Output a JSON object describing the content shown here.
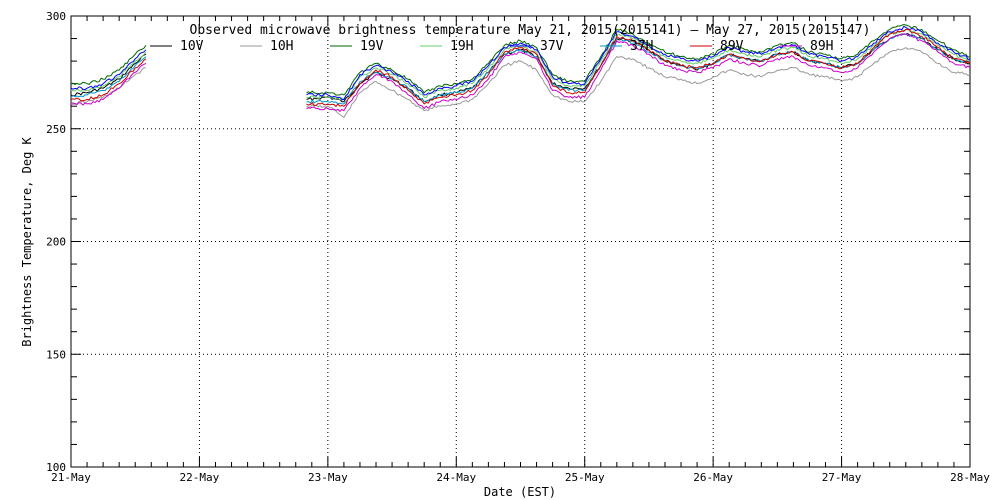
{
  "chart_data": {
    "type": "line",
    "title": "Observed microwave brightness temperature May 21, 2015(2015141) – May 27, 2015(2015147)",
    "xlabel": "Date (EST)",
    "ylabel": "Brightness Temperature, Deg K",
    "ylim": [
      100,
      300
    ],
    "xlim": [
      "2015-05-21",
      "2015-05-28"
    ],
    "yticks": [
      100,
      150,
      200,
      250,
      300
    ],
    "xtick_labels": [
      "21-May",
      "22-May",
      "23-May",
      "24-May",
      "25-May",
      "26-May",
      "27-May",
      "28-May"
    ],
    "grid": true,
    "legend_placement": "top",
    "legend_overlaps_title": true,
    "gaps": [
      [
        "2015-05-21T14:00",
        "2015-05-22T20:00"
      ]
    ],
    "x": [
      "2015-05-21T00:00",
      "2015-05-21T03:00",
      "2015-05-21T06:00",
      "2015-05-21T09:00",
      "2015-05-21T12:00",
      "2015-05-21T14:00",
      "2015-05-22T20:00",
      "2015-05-23T00:00",
      "2015-05-23T03:00",
      "2015-05-23T06:00",
      "2015-05-23T09:00",
      "2015-05-23T12:00",
      "2015-05-23T15:00",
      "2015-05-23T18:00",
      "2015-05-23T21:00",
      "2015-05-24T00:00",
      "2015-05-24T03:00",
      "2015-05-24T06:00",
      "2015-05-24T09:00",
      "2015-05-24T12:00",
      "2015-05-24T15:00",
      "2015-05-24T18:00",
      "2015-05-24T21:00",
      "2015-05-25T00:00",
      "2015-05-25T03:00",
      "2015-05-25T06:00",
      "2015-05-25T09:00",
      "2015-05-25T12:00",
      "2015-05-25T15:00",
      "2015-05-25T18:00",
      "2015-05-25T21:00",
      "2015-05-26T00:00",
      "2015-05-26T03:00",
      "2015-05-26T06:00",
      "2015-05-26T09:00",
      "2015-05-26T12:00",
      "2015-05-26T15:00",
      "2015-05-26T18:00",
      "2015-05-26T21:00",
      "2015-05-27T00:00",
      "2015-05-27T03:00",
      "2015-05-27T06:00",
      "2015-05-27T09:00",
      "2015-05-27T12:00",
      "2015-05-27T15:00",
      "2015-05-27T18:00",
      "2015-05-27T21:00",
      "2015-05-28T00:00"
    ],
    "series": [
      {
        "name": "10V",
        "color": "#000000",
        "values": [
          265,
          266,
          268,
          272,
          279,
          283,
          263,
          264,
          262,
          270,
          275,
          272,
          268,
          262,
          265,
          266,
          268,
          275,
          283,
          285,
          282,
          270,
          268,
          268,
          278,
          290,
          289,
          285,
          280,
          278,
          276,
          279,
          283,
          281,
          280,
          283,
          284,
          280,
          279,
          277,
          279,
          285,
          290,
          292,
          290,
          285,
          281,
          279
        ]
      },
      {
        "name": "10H",
        "color": "#999999",
        "values": [
          261,
          262,
          264,
          268,
          274,
          277,
          260,
          260,
          255,
          266,
          271,
          267,
          263,
          258,
          260,
          261,
          263,
          270,
          278,
          280,
          276,
          265,
          262,
          262,
          271,
          282,
          281,
          277,
          273,
          272,
          270,
          273,
          276,
          274,
          273,
          276,
          277,
          274,
          273,
          271,
          273,
          279,
          284,
          286,
          284,
          279,
          275,
          274
        ]
      },
      {
        "name": "19V",
        "color": "#006600",
        "values": [
          270,
          270,
          272,
          276,
          283,
          287,
          266,
          266,
          265,
          275,
          279,
          276,
          272,
          266,
          269,
          270,
          272,
          279,
          287,
          289,
          286,
          274,
          271,
          271,
          282,
          294,
          292,
          288,
          284,
          282,
          281,
          283,
          287,
          285,
          284,
          287,
          288,
          284,
          283,
          281,
          283,
          289,
          294,
          296,
          294,
          289,
          285,
          282
        ]
      },
      {
        "name": "19H",
        "color": "#66cc66",
        "values": [
          267,
          267,
          269,
          273,
          280,
          284,
          264,
          264,
          263,
          273,
          277,
          274,
          270,
          264,
          267,
          268,
          270,
          277,
          285,
          287,
          284,
          272,
          269,
          269,
          280,
          292,
          290,
          286,
          282,
          280,
          279,
          281,
          285,
          283,
          282,
          285,
          286,
          282,
          281,
          279,
          281,
          287,
          292,
          294,
          292,
          287,
          283,
          280
        ]
      },
      {
        "name": "37V",
        "color": "#0000ff",
        "values": [
          268,
          268,
          270,
          274,
          281,
          285,
          265,
          265,
          263,
          274,
          278,
          275,
          271,
          265,
          268,
          269,
          271,
          278,
          286,
          288,
          285,
          273,
          270,
          270,
          281,
          293,
          291,
          287,
          283,
          281,
          280,
          282,
          286,
          284,
          283,
          286,
          287,
          283,
          282,
          280,
          282,
          288,
          293,
          295,
          293,
          288,
          284,
          281
        ]
      },
      {
        "name": "37H",
        "color": "#0099cc",
        "values": [
          264,
          265,
          267,
          271,
          278,
          282,
          262,
          262,
          261,
          271,
          275,
          272,
          268,
          262,
          265,
          266,
          268,
          275,
          283,
          285,
          282,
          270,
          267,
          267,
          278,
          290,
          288,
          284,
          280,
          278,
          277,
          279,
          283,
          281,
          280,
          283,
          284,
          280,
          279,
          277,
          279,
          285,
          290,
          292,
          290,
          285,
          281,
          279
        ]
      },
      {
        "name": "89V",
        "color": "#cc0000",
        "values": [
          263,
          263,
          265,
          270,
          277,
          281,
          261,
          261,
          260,
          270,
          276,
          273,
          267,
          261,
          264,
          265,
          267,
          274,
          284,
          286,
          283,
          269,
          266,
          266,
          278,
          291,
          289,
          285,
          280,
          278,
          277,
          279,
          283,
          281,
          280,
          283,
          284,
          280,
          279,
          277,
          279,
          286,
          292,
          294,
          291,
          286,
          281,
          279
        ]
      },
      {
        "name": "89H",
        "color": "#cc00cc",
        "values": [
          261,
          261,
          263,
          268,
          275,
          279,
          259,
          259,
          258,
          268,
          274,
          271,
          265,
          259,
          262,
          263,
          265,
          272,
          282,
          284,
          281,
          267,
          264,
          264,
          276,
          289,
          287,
          283,
          278,
          276,
          275,
          277,
          281,
          279,
          278,
          281,
          282,
          278,
          277,
          275,
          277,
          284,
          290,
          292,
          289,
          284,
          279,
          277
        ]
      }
    ]
  }
}
